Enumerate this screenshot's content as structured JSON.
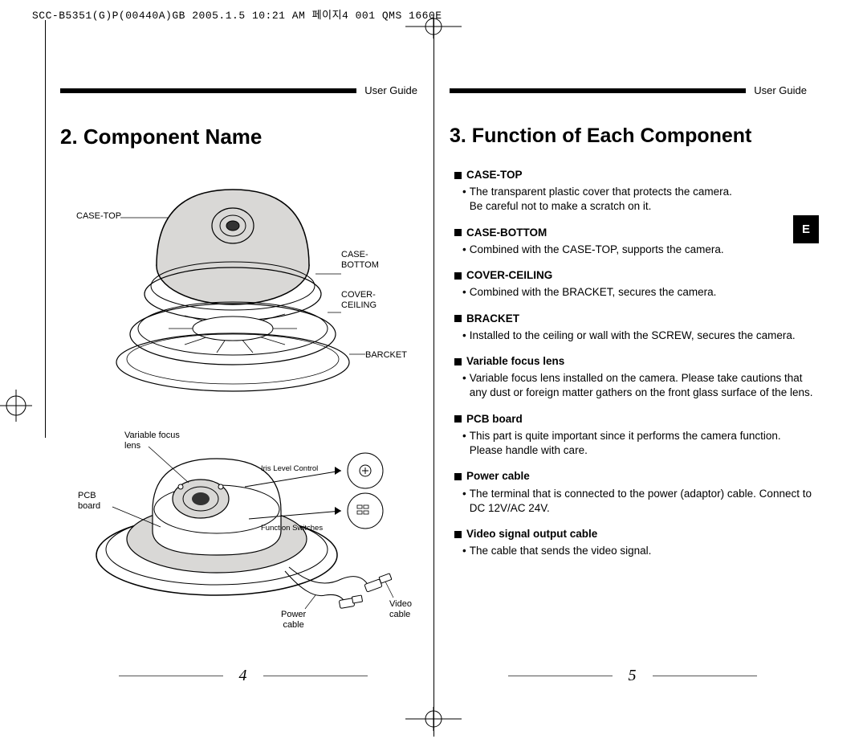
{
  "print_header": "SCC-B5351(G)P(00440A)GB  2005.1.5 10:21 AM 페이지4   001 QMS 1660E",
  "colors": {
    "black": "#000000",
    "white": "#ffffff",
    "gray_fill": "#d9d8d6",
    "gray_line": "#888888"
  },
  "left_page": {
    "header_label": "User Guide",
    "title": "2. Component Name",
    "page_number": "4",
    "labels": {
      "case_top": "CASE-TOP",
      "case_bottom": "CASE-\nBOTTOM",
      "cover_ceiling": "COVER-\nCEILING",
      "bracket": "BARCKET",
      "variable_focus": "Variable focus\nlens",
      "iris_level": "Iris Level Control",
      "pcb_board": "PCB\nboard",
      "function_switches": "Function Switches",
      "power_cable": "Power\ncable",
      "video_cable": "Video\ncable"
    }
  },
  "right_page": {
    "header_label": "User Guide",
    "title": "3. Function of Each Component",
    "page_number": "5",
    "lang_tab": "E",
    "items": [
      {
        "head": "CASE-TOP",
        "body": "The transparent plastic cover that protects the camera.\nBe careful not to make a scratch on it."
      },
      {
        "head": "CASE-BOTTOM",
        "body": "Combined with the CASE-TOP, supports the camera."
      },
      {
        "head": "COVER-CEILING",
        "body": "Combined with the BRACKET, secures the camera."
      },
      {
        "head": "BRACKET",
        "body": "Installed to the ceiling or wall with the SCREW, secures the camera."
      },
      {
        "head": "Variable focus lens",
        "body": "Variable focus lens installed on the camera. Please take cautions that any dust or foreign matter gathers on the front glass surface of the lens."
      },
      {
        "head": "PCB board",
        "body": "This part is quite important since it performs the camera function.   Please handle with care."
      },
      {
        "head": "Power cable",
        "body": "The terminal that is connected to the power (adaptor) cable. Connect to DC 12V/AC 24V."
      },
      {
        "head": "Video signal output cable",
        "body": "The cable that sends the video signal."
      }
    ]
  }
}
